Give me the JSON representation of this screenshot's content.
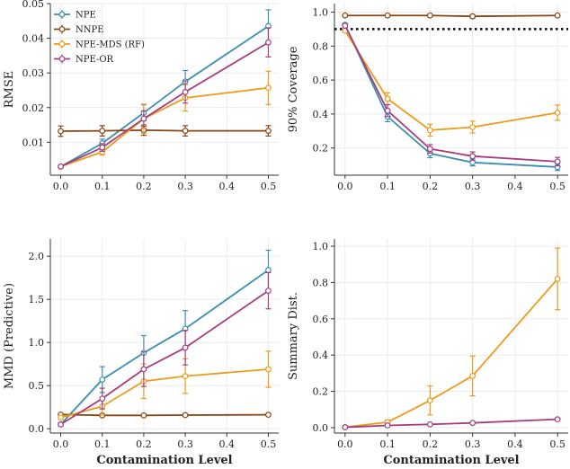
{
  "colors": {
    "NPE": "#3a8fb0",
    "NNPE": "#8b4513",
    "NPE-MDS (RF)": "#ee9a1a",
    "NPE-OR": "#a63d7e",
    "grid": "#e8e8e8",
    "ref": "#000000"
  },
  "legend": [
    "NPE",
    "NNPE",
    "NPE-MDS (RF)",
    "NPE-OR"
  ],
  "chart_data": [
    {
      "id": "rmse",
      "type": "line",
      "title": "",
      "xlabel": "",
      "ylabel": "RMSE",
      "x": [
        0.0,
        0.1,
        0.2,
        0.3,
        0.4,
        0.5
      ],
      "xticks": [
        "0.0",
        "0.1",
        "0.2",
        "0.3",
        "0.4",
        "0.5"
      ],
      "xlim": [
        -0.025,
        0.525
      ],
      "ylim": [
        0.0005,
        0.05
      ],
      "yticks": [
        0.01,
        0.02,
        0.03,
        0.04,
        0.05
      ],
      "ytick_labels": [
        "0.01",
        "0.02",
        "0.03",
        "0.04",
        "0.05"
      ],
      "grid": true,
      "legend_position": "top-left",
      "series": [
        {
          "name": "NPE",
          "x": [
            0,
            0.1,
            0.2,
            0.3,
            0.5
          ],
          "values": [
            0.003,
            0.0097,
            0.0185,
            0.0275,
            0.0435
          ],
          "err": [
            0.0003,
            0.0012,
            0.0023,
            0.0032,
            0.0047
          ]
        },
        {
          "name": "NNPE",
          "x": [
            0,
            0.1,
            0.2,
            0.3,
            0.5
          ],
          "values": [
            0.0132,
            0.0133,
            0.0135,
            0.0133,
            0.0133
          ],
          "err": [
            0.0015,
            0.0015,
            0.0015,
            0.0015,
            0.0015
          ]
        },
        {
          "name": "NPE-MDS (RF)",
          "x": [
            0,
            0.1,
            0.2,
            0.3,
            0.5
          ],
          "values": [
            0.003,
            0.0072,
            0.0168,
            0.0228,
            0.0257
          ],
          "err": [
            0.0002,
            0.0009,
            0.0042,
            0.0038,
            0.0048
          ]
        },
        {
          "name": "NPE-OR",
          "x": [
            0,
            0.1,
            0.2,
            0.3,
            0.5
          ],
          "values": [
            0.003,
            0.0085,
            0.0168,
            0.0245,
            0.0388
          ],
          "err": [
            0.0002,
            0.0011,
            0.0022,
            0.0032,
            0.0042
          ]
        }
      ]
    },
    {
      "id": "coverage",
      "type": "line",
      "title": "",
      "xlabel": "",
      "ylabel": "90% Coverage",
      "x": [
        0.0,
        0.1,
        0.2,
        0.3,
        0.4,
        0.5
      ],
      "xticks": [
        "0.0",
        "0.1",
        "0.2",
        "0.3",
        "0.4",
        "0.5"
      ],
      "xlim": [
        -0.025,
        0.525
      ],
      "ylim": [
        0.04,
        1.05
      ],
      "yticks": [
        0.2,
        0.4,
        0.6,
        0.8,
        1.0
      ],
      "ytick_labels": [
        "0.2",
        "0.4",
        "0.6",
        "0.8",
        "1.0"
      ],
      "grid": true,
      "reference_line": 0.9,
      "series": [
        {
          "name": "NPE",
          "x": [
            0,
            0.1,
            0.2,
            0.3,
            0.5
          ],
          "values": [
            0.925,
            0.385,
            0.168,
            0.115,
            0.088
          ],
          "err": [
            0.01,
            0.03,
            0.025,
            0.02,
            0.02
          ]
        },
        {
          "name": "NNPE",
          "x": [
            0,
            0.1,
            0.2,
            0.3,
            0.5
          ],
          "values": [
            0.98,
            0.98,
            0.98,
            0.975,
            0.98
          ],
          "err": [
            0.005,
            0.005,
            0.005,
            0.01,
            0.005
          ]
        },
        {
          "name": "NPE-MDS (RF)",
          "x": [
            0,
            0.1,
            0.2,
            0.3,
            0.5
          ],
          "values": [
            0.89,
            0.49,
            0.305,
            0.323,
            0.408
          ],
          "err": [
            0.01,
            0.035,
            0.035,
            0.035,
            0.045
          ]
        },
        {
          "name": "NPE-OR",
          "x": [
            0,
            0.1,
            0.2,
            0.3,
            0.5
          ],
          "values": [
            0.92,
            0.42,
            0.195,
            0.152,
            0.12
          ],
          "err": [
            0.01,
            0.035,
            0.025,
            0.025,
            0.025
          ]
        }
      ]
    },
    {
      "id": "mmd",
      "type": "line",
      "title": "",
      "xlabel": "Contamination Level",
      "ylabel": "MMD (Predictive)",
      "x": [
        0.0,
        0.1,
        0.2,
        0.3,
        0.4,
        0.5
      ],
      "xticks": [
        "0.0",
        "0.1",
        "0.2",
        "0.3",
        "0.4",
        "0.5"
      ],
      "xlim": [
        -0.025,
        0.525
      ],
      "ylim": [
        -0.05,
        2.2
      ],
      "yticks": [
        0.0,
        0.5,
        1.0,
        1.5,
        2.0
      ],
      "ytick_labels": [
        "0.0",
        "0.5",
        "1.0",
        "1.5",
        "2.0"
      ],
      "grid": true,
      "series": [
        {
          "name": "NPE",
          "x": [
            0,
            0.1,
            0.2,
            0.3,
            0.5
          ],
          "values": [
            0.05,
            0.57,
            0.88,
            1.16,
            1.84
          ],
          "err": [
            0.02,
            0.15,
            0.2,
            0.21,
            0.23
          ]
        },
        {
          "name": "NNPE",
          "x": [
            0,
            0.1,
            0.2,
            0.3,
            0.5
          ],
          "values": [
            0.165,
            0.155,
            0.155,
            0.158,
            0.162
          ],
          "err": [
            0.01,
            0.01,
            0.01,
            0.01,
            0.01
          ]
        },
        {
          "name": "NPE-MDS (RF)",
          "x": [
            0,
            0.1,
            0.2,
            0.3,
            0.5
          ],
          "values": [
            0.13,
            0.26,
            0.55,
            0.61,
            0.69
          ],
          "err": [
            0.02,
            0.1,
            0.2,
            0.2,
            0.21
          ]
        },
        {
          "name": "NPE-OR",
          "x": [
            0,
            0.1,
            0.2,
            0.3,
            0.5
          ],
          "values": [
            0.05,
            0.35,
            0.69,
            0.94,
            1.6
          ],
          "err": [
            0.02,
            0.12,
            0.2,
            0.2,
            0.21
          ]
        }
      ]
    },
    {
      "id": "summary",
      "type": "line",
      "title": "",
      "xlabel": "Contamination Level",
      "ylabel": "Summary Dist.",
      "x": [
        0.0,
        0.1,
        0.2,
        0.3,
        0.4,
        0.5
      ],
      "xticks": [
        "0.0",
        "0.1",
        "0.2",
        "0.3",
        "0.4",
        "0.5"
      ],
      "xlim": [
        -0.025,
        0.525
      ],
      "ylim": [
        -0.03,
        1.04
      ],
      "yticks": [
        0.0,
        0.2,
        0.4,
        0.6,
        0.8,
        1.0
      ],
      "ytick_labels": [
        "0.0",
        "0.2",
        "0.4",
        "0.6",
        "0.8",
        "1.0"
      ],
      "grid": true,
      "series": [
        {
          "name": "NPE-MDS (RF)",
          "x": [
            0,
            0.1,
            0.2,
            0.3,
            0.5
          ],
          "values": [
            0.003,
            0.03,
            0.15,
            0.285,
            0.82
          ],
          "err": [
            0.002,
            0.012,
            0.08,
            0.11,
            0.17
          ]
        },
        {
          "name": "NPE-OR",
          "x": [
            0,
            0.1,
            0.2,
            0.3,
            0.5
          ],
          "values": [
            0.002,
            0.012,
            0.018,
            0.026,
            0.046
          ],
          "err": [
            0.001,
            0.003,
            0.004,
            0.004,
            0.006
          ]
        }
      ]
    }
  ]
}
